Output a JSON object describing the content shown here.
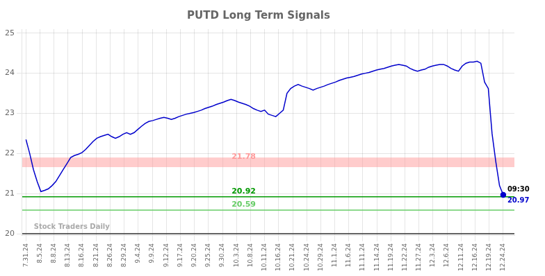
{
  "chart_data": {
    "type": "line",
    "title": "PUTD Long Term Signals",
    "x": [
      0,
      1,
      2,
      3,
      4,
      5,
      6,
      7,
      8,
      9,
      10,
      11,
      12,
      13,
      14,
      15,
      16,
      17,
      18,
      19,
      20,
      21,
      22,
      23,
      24,
      25,
      26,
      27,
      28,
      29,
      30,
      31,
      32,
      33,
      34,
      35,
      36,
      37,
      38,
      39,
      40,
      41,
      42,
      43,
      44,
      45,
      46,
      47,
      48,
      49,
      50,
      51,
      52,
      53,
      54,
      55,
      56,
      57,
      58,
      59,
      60,
      61,
      62,
      63,
      64,
      65,
      66,
      67,
      68,
      69,
      70,
      71,
      72,
      73,
      74,
      75,
      76,
      77,
      78,
      79,
      80,
      81,
      82,
      83,
      84,
      85,
      86,
      87,
      88,
      89,
      90,
      91,
      92,
      93,
      94,
      95,
      96,
      97,
      98,
      99,
      100,
      101,
      102,
      103,
      104,
      105,
      106,
      107,
      108,
      109,
      110,
      111,
      112,
      113,
      114,
      115,
      116,
      117,
      118,
      119,
      120,
      121,
      122,
      123,
      124,
      125,
      126,
      127,
      128
    ],
    "values": [
      22.35,
      22.0,
      21.6,
      21.3,
      21.05,
      21.08,
      21.12,
      21.2,
      21.3,
      21.45,
      21.6,
      21.75,
      21.9,
      21.95,
      21.98,
      22.02,
      22.1,
      22.2,
      22.3,
      22.38,
      22.42,
      22.45,
      22.48,
      22.42,
      22.38,
      22.42,
      22.48,
      22.52,
      22.48,
      22.52,
      22.6,
      22.68,
      22.75,
      22.8,
      22.82,
      22.85,
      22.88,
      22.9,
      22.88,
      22.85,
      22.88,
      22.92,
      22.95,
      22.98,
      23.0,
      23.02,
      23.05,
      23.08,
      23.12,
      23.15,
      23.18,
      23.22,
      23.25,
      23.28,
      23.32,
      23.35,
      23.32,
      23.28,
      23.25,
      23.22,
      23.18,
      23.12,
      23.08,
      23.05,
      23.08,
      22.98,
      22.95,
      22.92,
      23.0,
      23.08,
      23.5,
      23.62,
      23.68,
      23.72,
      23.68,
      23.65,
      23.62,
      23.58,
      23.62,
      23.65,
      23.68,
      23.72,
      23.75,
      23.78,
      23.82,
      23.85,
      23.88,
      23.9,
      23.92,
      23.95,
      23.98,
      24.0,
      24.02,
      24.05,
      24.08,
      24.1,
      24.12,
      24.15,
      24.18,
      24.2,
      24.22,
      24.2,
      24.18,
      24.12,
      24.08,
      24.05,
      24.08,
      24.1,
      24.15,
      24.18,
      24.2,
      24.22,
      24.22,
      24.18,
      24.12,
      24.08,
      24.05,
      24.18,
      24.25,
      24.28,
      24.28,
      24.3,
      24.25,
      23.78,
      23.62,
      22.5,
      21.8,
      21.2,
      20.97
    ],
    "color": "#0000cc",
    "marker": "last",
    "xlim": [
      -1,
      131
    ],
    "xticks": [
      {
        "value": 0,
        "label": "7.31.24"
      },
      {
        "value": 3.764706,
        "label": "8.5.24"
      },
      {
        "value": 7.529412,
        "label": "8.8.24"
      },
      {
        "value": 11.294118,
        "label": "8.13.24"
      },
      {
        "value": 15.058824,
        "label": "8.16.24"
      },
      {
        "value": 18.823529,
        "label": "8.21.24"
      },
      {
        "value": 22.588235,
        "label": "8.26.24"
      },
      {
        "value": 26.352941,
        "label": "8.29.24"
      },
      {
        "value": 30.117647,
        "label": "9.4.24"
      },
      {
        "value": 33.882353,
        "label": "9.9.24"
      },
      {
        "value": 37.647059,
        "label": "9.12.24"
      },
      {
        "value": 41.411765,
        "label": "9.17.24"
      },
      {
        "value": 45.176471,
        "label": "9.20.24"
      },
      {
        "value": 48.941176,
        "label": "9.25.24"
      },
      {
        "value": 52.705882,
        "label": "9.30.24"
      },
      {
        "value": 56.470588,
        "label": "10.3.24"
      },
      {
        "value": 60.235294,
        "label": "10.8.24"
      },
      {
        "value": 64,
        "label": "10.11.24"
      },
      {
        "value": 67.764706,
        "label": "10.16.24"
      },
      {
        "value": 71.529412,
        "label": "10.21.24"
      },
      {
        "value": 75.294118,
        "label": "10.24.24"
      },
      {
        "value": 79.058824,
        "label": "10.29.24"
      },
      {
        "value": 82.823529,
        "label": "11.1.24"
      },
      {
        "value": 86.588235,
        "label": "11.6.24"
      },
      {
        "value": 90.352941,
        "label": "11.11.24"
      },
      {
        "value": 94.117647,
        "label": "11.14.24"
      },
      {
        "value": 97.882353,
        "label": "11.19.24"
      },
      {
        "value": 101.647059,
        "label": "11.22.24"
      },
      {
        "value": 105.411765,
        "label": "11.27.24"
      },
      {
        "value": 109.176471,
        "label": "12.3.24"
      },
      {
        "value": 112.941176,
        "label": "12.6.24"
      },
      {
        "value": 116.705882,
        "label": "12.11.24"
      },
      {
        "value": 120.470588,
        "label": "12.16.24"
      },
      {
        "value": 124.235294,
        "label": "12.19.24"
      },
      {
        "value": 128,
        "label": "12.24.24"
      }
    ],
    "ylim": [
      19.95,
      25.1
    ],
    "yticks": [
      20,
      21,
      22,
      23,
      24,
      25
    ],
    "grid": true,
    "bands": [
      {
        "from": 21.66,
        "to": 21.9,
        "y": 21.78,
        "color": "#ff9999",
        "label": "21.78"
      }
    ],
    "lines": [
      {
        "y": 20.92,
        "color": "#009900",
        "label": "20.92"
      },
      {
        "y": 20.59,
        "color": "#66cc66",
        "label": "20.59"
      },
      {
        "y": 20,
        "color": "#333333"
      }
    ],
    "annotations": [
      {
        "text": "09:30",
        "x": 128,
        "y": 20.97,
        "color": "#000000"
      },
      {
        "text": "20.97",
        "x": 128,
        "y": 20.97,
        "color": "#0000cc"
      },
      {
        "text": "Stock Traders Daily",
        "x": 1,
        "y": 20.02,
        "color": "#aaaaaa"
      }
    ]
  }
}
